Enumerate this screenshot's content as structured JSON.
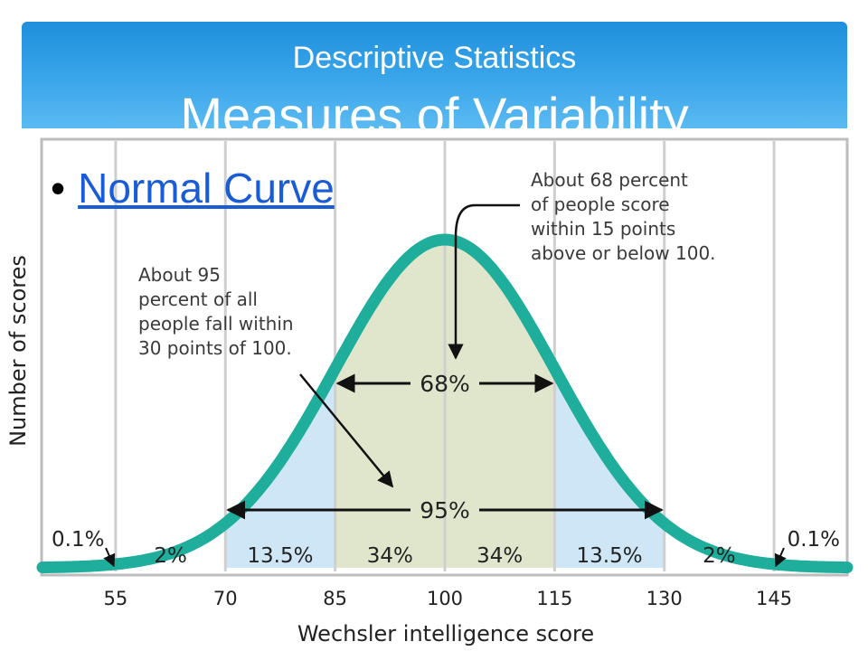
{
  "header": {
    "subtitle": "Descriptive Statistics",
    "title": "Measures of Variability"
  },
  "bullet": {
    "link_text": "Normal Curve"
  },
  "colors": {
    "curve": "#1fae9c",
    "center_fill": "#dfe6cc",
    "side_fill": "#cfe6f6",
    "grid": "#cfcfcf",
    "header_bg": "#2a9be6",
    "link": "#1a5cd6"
  },
  "chart_data": {
    "type": "area",
    "title": "",
    "xlabel": "Wechsler intelligence score",
    "ylabel": "Number of scores",
    "mean": 100,
    "sd": 15,
    "x_ticks": [
      55,
      70,
      85,
      100,
      115,
      130,
      145
    ],
    "x_tick_labels": [
      "55",
      "70",
      "85",
      "100",
      "115",
      "130",
      "145"
    ],
    "xlim": [
      45,
      155
    ],
    "regions": [
      {
        "from": 45,
        "to": 55,
        "percent": "0.1%"
      },
      {
        "from": 55,
        "to": 70,
        "percent": "2%"
      },
      {
        "from": 70,
        "to": 85,
        "percent": "13.5%"
      },
      {
        "from": 85,
        "to": 100,
        "percent": "34%"
      },
      {
        "from": 100,
        "to": 115,
        "percent": "34%"
      },
      {
        "from": 115,
        "to": 130,
        "percent": "13.5%"
      },
      {
        "from": 130,
        "to": 145,
        "percent": "2%"
      },
      {
        "from": 145,
        "to": 155,
        "percent": "0.1%"
      }
    ],
    "ranges": [
      {
        "from": 85,
        "to": 115,
        "label": "68%"
      },
      {
        "from": 70,
        "to": 130,
        "label": "95%"
      }
    ],
    "annotations": [
      "About 68 percent\nof people score\nwithin 15 points\nabove or below 100.",
      "About 95\npercent of all\npeople fall within\n30 points of 100."
    ],
    "grid": true
  }
}
